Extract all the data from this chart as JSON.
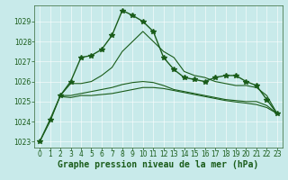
{
  "title": "",
  "xlabel": "Graphe pression niveau de la mer (hPa)",
  "background_color": "#c8eaea",
  "grid_color": "#b0d8d8",
  "line_color": "#1a5c1a",
  "xlim": [
    -0.5,
    23.5
  ],
  "ylim": [
    1022.7,
    1029.8
  ],
  "yticks": [
    1023,
    1024,
    1025,
    1026,
    1027,
    1028,
    1029
  ],
  "xticks": [
    0,
    1,
    2,
    3,
    4,
    5,
    6,
    7,
    8,
    9,
    10,
    11,
    12,
    13,
    14,
    15,
    16,
    17,
    18,
    19,
    20,
    21,
    22,
    23
  ],
  "series": [
    {
      "x": [
        0,
        1,
        2,
        3,
        4,
        5,
        6,
        7,
        8,
        9,
        10,
        11,
        12,
        13,
        14,
        15,
        16,
        17,
        18,
        19,
        20,
        21,
        22,
        23
      ],
      "y": [
        1023.0,
        1024.1,
        1025.3,
        1026.0,
        1027.2,
        1027.3,
        1027.6,
        1028.3,
        1029.55,
        1029.3,
        1029.0,
        1028.5,
        1027.2,
        1026.6,
        1026.2,
        1026.1,
        1026.0,
        1026.2,
        1026.3,
        1026.3,
        1026.0,
        1025.8,
        1025.1,
        1024.4
      ],
      "with_markers": true,
      "marker": "*",
      "markersize": 4,
      "linewidth": 1.0
    },
    {
      "x": [
        0,
        1,
        2,
        3,
        4,
        5,
        6,
        7,
        8,
        9,
        10,
        11,
        12,
        13,
        14,
        15,
        16,
        17,
        18,
        19,
        20,
        21,
        22,
        23
      ],
      "y": [
        1023.0,
        1024.0,
        1025.3,
        1025.9,
        1025.9,
        1026.0,
        1026.3,
        1026.7,
        1027.5,
        1028.0,
        1028.5,
        1028.0,
        1027.5,
        1027.2,
        1026.5,
        1026.3,
        1026.2,
        1026.0,
        1025.9,
        1025.8,
        1025.8,
        1025.7,
        1025.3,
        1024.4
      ],
      "with_markers": false,
      "marker": null,
      "markersize": 0,
      "linewidth": 0.8
    },
    {
      "x": [
        2,
        3,
        4,
        5,
        6,
        7,
        8,
        9,
        10,
        11,
        12,
        13,
        14,
        15,
        16,
        17,
        18,
        19,
        20,
        21,
        22,
        23
      ],
      "y": [
        1025.3,
        1025.3,
        1025.4,
        1025.5,
        1025.6,
        1025.7,
        1025.85,
        1025.95,
        1026.0,
        1025.95,
        1025.8,
        1025.6,
        1025.5,
        1025.4,
        1025.3,
        1025.2,
        1025.1,
        1025.05,
        1025.0,
        1025.0,
        1024.8,
        1024.4
      ],
      "with_markers": false,
      "marker": null,
      "markersize": 0,
      "linewidth": 0.8
    },
    {
      "x": [
        2,
        3,
        4,
        5,
        6,
        7,
        8,
        9,
        10,
        11,
        12,
        13,
        14,
        15,
        16,
        17,
        18,
        19,
        20,
        21,
        22,
        23
      ],
      "y": [
        1025.25,
        1025.2,
        1025.3,
        1025.3,
        1025.35,
        1025.4,
        1025.5,
        1025.6,
        1025.7,
        1025.7,
        1025.65,
        1025.55,
        1025.45,
        1025.35,
        1025.25,
        1025.15,
        1025.05,
        1024.98,
        1024.92,
        1024.85,
        1024.7,
        1024.4
      ],
      "with_markers": false,
      "marker": null,
      "markersize": 0,
      "linewidth": 0.8
    }
  ],
  "tick_fontsize": 5.5,
  "label_fontsize": 7,
  "tick_color": "#1a5c1a",
  "label_color": "#1a5c1a"
}
